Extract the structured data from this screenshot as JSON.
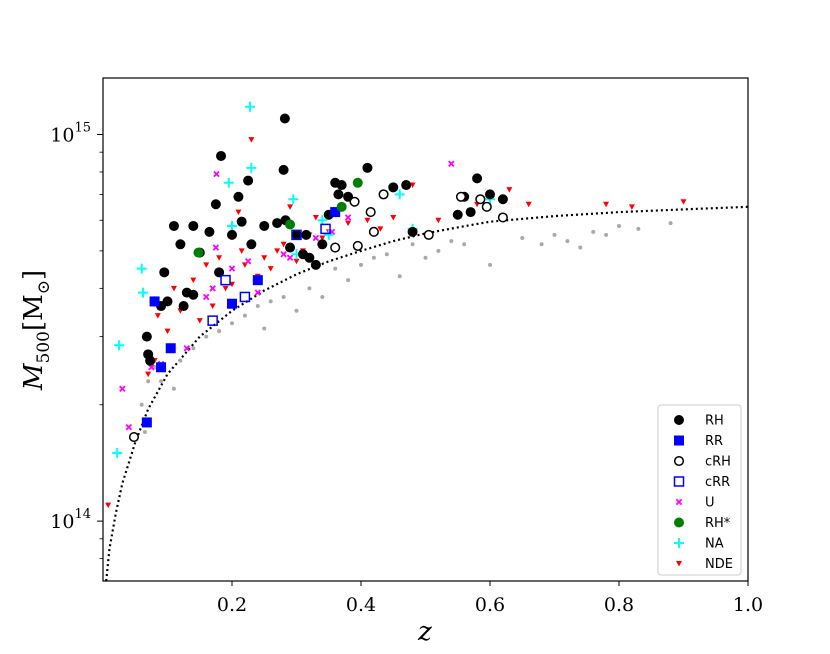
{
  "chart_data": {
    "type": "scatter",
    "title": "",
    "xlabel": "z",
    "ylabel_parts": {
      "base": "M",
      "sub": "500",
      "unit": "[M",
      "unit_sub": "⊙",
      "close": "]"
    },
    "xlim": [
      0.0,
      1.0
    ],
    "ylim": [
      70000000000000.0,
      1400000000000000.0
    ],
    "yscale": "log",
    "grid": false,
    "legend_position": "lower-right",
    "x_ticks": [
      "0.2",
      "0.4",
      "0.6",
      "0.8",
      "1.0"
    ],
    "y_ticks": [
      {
        "base": "10",
        "exp": "14",
        "value": 100000000000000.0
      },
      {
        "base": "10",
        "exp": "15",
        "value": 1000000000000000.0
      }
    ],
    "curve": {
      "name": "detection-limit",
      "points": [
        [
          0.005,
          70000000000000.0
        ],
        [
          0.01,
          85000000000000.0
        ],
        [
          0.02,
          105000000000000.0
        ],
        [
          0.03,
          125000000000000.0
        ],
        [
          0.05,
          160000000000000.0
        ],
        [
          0.07,
          195000000000000.0
        ],
        [
          0.1,
          240000000000000.0
        ],
        [
          0.15,
          300000000000000.0
        ],
        [
          0.2,
          350000000000000.0
        ],
        [
          0.25,
          395000000000000.0
        ],
        [
          0.3,
          435000000000000.0
        ],
        [
          0.35,
          470000000000000.0
        ],
        [
          0.4,
          500000000000000.0
        ],
        [
          0.45,
          530000000000000.0
        ],
        [
          0.5,
          555000000000000.0
        ],
        [
          0.55,
          575000000000000.0
        ],
        [
          0.6,
          595000000000000.0
        ],
        [
          0.65,
          605000000000000.0
        ],
        [
          0.7,
          615000000000000.0
        ],
        [
          0.8,
          630000000000000.0
        ],
        [
          0.9,
          640000000000000.0
        ],
        [
          1.0,
          650000000000000.0
        ]
      ]
    },
    "series": [
      {
        "name": "RH",
        "marker": "filled-circle",
        "color": "#000000",
        "points": [
          [
            0.07,
            270000000000000.0
          ],
          [
            0.073,
            260000000000000.0
          ],
          [
            0.068,
            300000000000000.0
          ],
          [
            0.08,
            370000000000000.0
          ],
          [
            0.09,
            360000000000000.0
          ],
          [
            0.095,
            440000000000000.0
          ],
          [
            0.1,
            370000000000000.0
          ],
          [
            0.11,
            580000000000000.0
          ],
          [
            0.12,
            520000000000000.0
          ],
          [
            0.125,
            360000000000000.0
          ],
          [
            0.13,
            390000000000000.0
          ],
          [
            0.14,
            580000000000000.0
          ],
          [
            0.14,
            385000000000000.0
          ],
          [
            0.15,
            495000000000000.0
          ],
          [
            0.165,
            560000000000000.0
          ],
          [
            0.175,
            660000000000000.0
          ],
          [
            0.18,
            440000000000000.0
          ],
          [
            0.183,
            880000000000000.0
          ],
          [
            0.2,
            550000000000000.0
          ],
          [
            0.21,
            690000000000000.0
          ],
          [
            0.215,
            595000000000000.0
          ],
          [
            0.225,
            760000000000000.0
          ],
          [
            0.23,
            520000000000000.0
          ],
          [
            0.25,
            580000000000000.0
          ],
          [
            0.27,
            590000000000000.0
          ],
          [
            0.28,
            810000000000000.0
          ],
          [
            0.282,
            1100000000000000.0
          ],
          [
            0.283,
            600000000000000.0
          ],
          [
            0.29,
            510000000000000.0
          ],
          [
            0.3,
            550000000000000.0
          ],
          [
            0.31,
            490000000000000.0
          ],
          [
            0.315,
            550000000000000.0
          ],
          [
            0.32,
            480000000000000.0
          ],
          [
            0.33,
            460000000000000.0
          ],
          [
            0.34,
            520000000000000.0
          ],
          [
            0.35,
            620000000000000.0
          ],
          [
            0.36,
            750000000000000.0
          ],
          [
            0.365,
            700000000000000.0
          ],
          [
            0.37,
            740000000000000.0
          ],
          [
            0.38,
            690000000000000.0
          ],
          [
            0.41,
            820000000000000.0
          ],
          [
            0.45,
            730000000000000.0
          ],
          [
            0.47,
            740000000000000.0
          ],
          [
            0.48,
            560000000000000.0
          ],
          [
            0.55,
            620000000000000.0
          ],
          [
            0.56,
            690000000000000.0
          ],
          [
            0.57,
            630000000000000.0
          ],
          [
            0.58,
            770000000000000.0
          ],
          [
            0.6,
            700000000000000.0
          ],
          [
            0.62,
            680000000000000.0
          ]
        ]
      },
      {
        "name": "RR",
        "marker": "filled-square",
        "color": "#0000ff",
        "points": [
          [
            0.068,
            180000000000000.0
          ],
          [
            0.08,
            370000000000000.0
          ],
          [
            0.09,
            250000000000000.0
          ],
          [
            0.105,
            280000000000000.0
          ],
          [
            0.2,
            365000000000000.0
          ],
          [
            0.24,
            420000000000000.0
          ],
          [
            0.36,
            630000000000000.0
          ]
        ]
      },
      {
        "name": "cRH",
        "marker": "open-circle",
        "color": "#000000",
        "points": [
          [
            0.048,
            165000000000000.0
          ],
          [
            0.36,
            510000000000000.0
          ],
          [
            0.39,
            670000000000000.0
          ],
          [
            0.395,
            515000000000000.0
          ],
          [
            0.415,
            630000000000000.0
          ],
          [
            0.42,
            560000000000000.0
          ],
          [
            0.435,
            700000000000000.0
          ],
          [
            0.505,
            550000000000000.0
          ],
          [
            0.555,
            690000000000000.0
          ],
          [
            0.585,
            680000000000000.0
          ],
          [
            0.595,
            650000000000000.0
          ],
          [
            0.62,
            610000000000000.0
          ]
        ]
      },
      {
        "name": "cRR",
        "marker": "open-square",
        "color": "#0000ff",
        "points": [
          [
            0.17,
            330000000000000.0
          ],
          [
            0.19,
            420000000000000.0
          ],
          [
            0.22,
            380000000000000.0
          ],
          [
            0.3,
            550000000000000.0
          ],
          [
            0.345,
            570000000000000.0
          ]
        ]
      },
      {
        "name": "U",
        "marker": "x",
        "color": "#ff00ff",
        "points": [
          [
            0.03,
            220000000000000.0
          ],
          [
            0.04,
            175000000000000.0
          ],
          [
            0.075,
            250000000000000.0
          ],
          [
            0.09,
            255000000000000.0
          ],
          [
            0.13,
            280000000000000.0
          ],
          [
            0.16,
            380000000000000.0
          ],
          [
            0.17,
            400000000000000.0
          ],
          [
            0.175,
            510000000000000.0
          ],
          [
            0.176,
            790000000000000.0
          ],
          [
            0.2,
            450000000000000.0
          ],
          [
            0.225,
            470000000000000.0
          ],
          [
            0.24,
            390000000000000.0
          ],
          [
            0.28,
            490000000000000.0
          ],
          [
            0.29,
            480000000000000.0
          ],
          [
            0.33,
            540000000000000.0
          ],
          [
            0.355,
            560000000000000.0
          ],
          [
            0.38,
            610000000000000.0
          ],
          [
            0.54,
            840000000000000.0
          ],
          [
            0.6,
            690000000000000.0
          ]
        ]
      },
      {
        "name": "RH*",
        "marker": "filled-circle",
        "color": "#008000",
        "points": [
          [
            0.148,
            495000000000000.0
          ],
          [
            0.29,
            585000000000000.0
          ],
          [
            0.37,
            650000000000000.0
          ],
          [
            0.395,
            750000000000000.0
          ]
        ]
      },
      {
        "name": "NA",
        "marker": "plus",
        "color": "#00ffff",
        "points": [
          [
            0.022,
            150000000000000.0
          ],
          [
            0.025,
            285000000000000.0
          ],
          [
            0.06,
            450000000000000.0
          ],
          [
            0.062,
            390000000000000.0
          ],
          [
            0.195,
            750000000000000.0
          ],
          [
            0.2,
            580000000000000.0
          ],
          [
            0.228,
            1180000000000000.0
          ],
          [
            0.23,
            820000000000000.0
          ],
          [
            0.295,
            680000000000000.0
          ],
          [
            0.3,
            490000000000000.0
          ],
          [
            0.34,
            600000000000000.0
          ],
          [
            0.35,
            550000000000000.0
          ],
          [
            0.46,
            700000000000000.0
          ],
          [
            0.48,
            570000000000000.0
          ],
          [
            0.6,
            680000000000000.0
          ]
        ]
      },
      {
        "name": "NDE",
        "marker": "triangle-down",
        "color": "#ff0000",
        "points": [
          [
            0.008,
            110000000000000.0
          ],
          [
            0.065,
            180000000000000.0
          ],
          [
            0.07,
            240000000000000.0
          ],
          [
            0.08,
            260000000000000.0
          ],
          [
            0.085,
            340000000000000.0
          ],
          [
            0.1,
            310000000000000.0
          ],
          [
            0.11,
            400000000000000.0
          ],
          [
            0.12,
            350000000000000.0
          ],
          [
            0.14,
            420000000000000.0
          ],
          [
            0.15,
            330000000000000.0
          ],
          [
            0.16,
            460000000000000.0
          ],
          [
            0.17,
            360000000000000.0
          ],
          [
            0.18,
            480000000000000.0
          ],
          [
            0.19,
            400000000000000.0
          ],
          [
            0.2,
            410000000000000.0
          ],
          [
            0.21,
            630000000000000.0
          ],
          [
            0.215,
            500000000000000.0
          ],
          [
            0.22,
            460000000000000.0
          ],
          [
            0.23,
            970000000000000.0
          ],
          [
            0.24,
            430000000000000.0
          ],
          [
            0.25,
            480000000000000.0
          ],
          [
            0.26,
            450000000000000.0
          ],
          [
            0.27,
            500000000000000.0
          ],
          [
            0.28,
            520000000000000.0
          ],
          [
            0.29,
            650000000000000.0
          ],
          [
            0.3,
            470000000000000.0
          ],
          [
            0.31,
            500000000000000.0
          ],
          [
            0.32,
            550000000000000.0
          ],
          [
            0.33,
            610000000000000.0
          ],
          [
            0.34,
            540000000000000.0
          ],
          [
            0.35,
            560000000000000.0
          ],
          [
            0.38,
            590000000000000.0
          ],
          [
            0.41,
            600000000000000.0
          ],
          [
            0.43,
            570000000000000.0
          ],
          [
            0.45,
            610000000000000.0
          ],
          [
            0.48,
            740000000000000.0
          ],
          [
            0.52,
            600000000000000.0
          ],
          [
            0.58,
            660000000000000.0
          ],
          [
            0.63,
            720000000000000.0
          ],
          [
            0.66,
            660000000000000.0
          ],
          [
            0.78,
            660000000000000.0
          ],
          [
            0.82,
            650000000000000.0
          ],
          [
            0.9,
            670000000000000.0
          ]
        ]
      },
      {
        "name": "",
        "marker": "small-dot",
        "color": "#aaaaaa",
        "points": [
          [
            0.06,
            200000000000000.0
          ],
          [
            0.065,
            170000000000000.0
          ],
          [
            0.07,
            230000000000000.0
          ],
          [
            0.08,
            250000000000000.0
          ],
          [
            0.09,
            230000000000000.0
          ],
          [
            0.11,
            220000000000000.0
          ],
          [
            0.12,
            260000000000000.0
          ],
          [
            0.14,
            280000000000000.0
          ],
          [
            0.16,
            300000000000000.0
          ],
          [
            0.18,
            310000000000000.0
          ],
          [
            0.2,
            325000000000000.0
          ],
          [
            0.22,
            340000000000000.0
          ],
          [
            0.24,
            360000000000000.0
          ],
          [
            0.25,
            315000000000000.0
          ],
          [
            0.26,
            370000000000000.0
          ],
          [
            0.28,
            380000000000000.0
          ],
          [
            0.3,
            350000000000000.0
          ],
          [
            0.32,
            400000000000000.0
          ],
          [
            0.34,
            380000000000000.0
          ],
          [
            0.36,
            450000000000000.0
          ],
          [
            0.38,
            420000000000000.0
          ],
          [
            0.4,
            460000000000000.0
          ],
          [
            0.42,
            480000000000000.0
          ],
          [
            0.44,
            490000000000000.0
          ],
          [
            0.46,
            430000000000000.0
          ],
          [
            0.48,
            520000000000000.0
          ],
          [
            0.5,
            480000000000000.0
          ],
          [
            0.52,
            500000000000000.0
          ],
          [
            0.54,
            530000000000000.0
          ],
          [
            0.56,
            520000000000000.0
          ],
          [
            0.6,
            460000000000000.0
          ],
          [
            0.65,
            540000000000000.0
          ],
          [
            0.68,
            520000000000000.0
          ],
          [
            0.7,
            550000000000000.0
          ],
          [
            0.72,
            530000000000000.0
          ],
          [
            0.74,
            510000000000000.0
          ],
          [
            0.76,
            560000000000000.0
          ],
          [
            0.78,
            550000000000000.0
          ],
          [
            0.8,
            580000000000000.0
          ],
          [
            0.83,
            570000000000000.0
          ],
          [
            0.88,
            590000000000000.0
          ]
        ]
      }
    ]
  }
}
